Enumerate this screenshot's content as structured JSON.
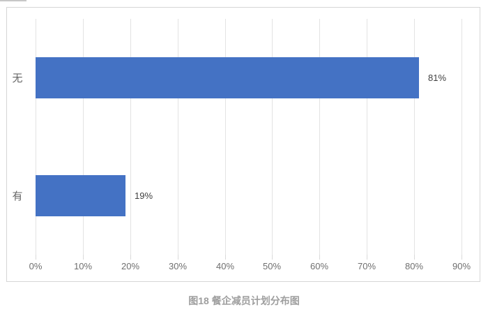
{
  "page": {
    "background": "#ffffff"
  },
  "chart_data": {
    "type": "bar",
    "orientation": "horizontal",
    "title": "图18 餐企减员计划分布图",
    "categories": [
      "无",
      "有"
    ],
    "values": [
      81,
      19
    ],
    "value_labels": [
      "81%",
      "19%"
    ],
    "x_ticks": [
      "0%",
      "10%",
      "20%",
      "30%",
      "40%",
      "50%",
      "60%",
      "70%",
      "80%",
      "90%"
    ],
    "x_tick_values": [
      0,
      10,
      20,
      30,
      40,
      50,
      60,
      70,
      80,
      90
    ],
    "xlim": [
      0,
      90
    ],
    "xlabel": "",
    "ylabel": "",
    "grid": true,
    "legend_position": "none",
    "bar_color": "#4472c4",
    "gridline_color": "#e3e3e3",
    "tick_mark_color": "#d9d9d9",
    "frame_border_color": "#d6d6d6",
    "tick_label_color": "#6f6f6f",
    "category_label_color": "#666666",
    "value_label_color": "#404040"
  },
  "caption": {
    "text": "图18 餐企减员计划分布图",
    "color": "#9e9e9e"
  }
}
